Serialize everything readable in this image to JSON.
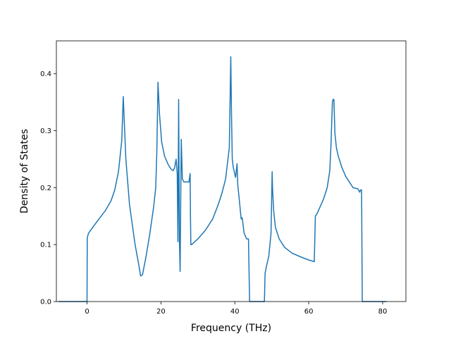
{
  "chart_data": {
    "type": "line",
    "title": "",
    "xlabel": "Frequency (THz)",
    "ylabel": "Density of States",
    "xlim": [
      -8.3,
      86.3
    ],
    "ylim": [
      0,
      0.4578
    ],
    "grid": false,
    "legend": "none",
    "xticks": [
      0,
      20,
      40,
      60,
      80
    ],
    "xtick_labels": [
      "0",
      "20",
      "40",
      "60",
      "80"
    ],
    "yticks": [
      0.0,
      0.1,
      0.2,
      0.3,
      0.4
    ],
    "ytick_labels": [
      "0.0",
      "0.1",
      "0.2",
      "0.3",
      "0.4"
    ],
    "series": [
      {
        "color": "#1f77b4",
        "x": [
          -7.6,
          -3,
          0,
          0.05,
          0.4,
          1.5,
          3,
          5,
          6.5,
          7.5,
          8.5,
          9.0,
          9.4,
          9.8,
          10.5,
          11.5,
          13,
          14,
          14.5,
          15,
          16,
          17,
          18,
          18.6,
          18.9,
          19.2,
          19.6,
          20.2,
          21,
          22,
          22.8,
          23.3,
          23.7,
          24.1,
          24.4,
          24.6,
          24.8,
          25.0,
          25.2,
          25.5,
          25.8,
          26.2,
          27,
          27.6,
          27.9,
          28.0,
          28.1,
          28.3,
          30,
          32,
          34,
          35.5,
          36.5,
          37.5,
          38.5,
          38.9,
          39.1,
          39.3,
          39.6,
          40.2,
          40.6,
          40.8,
          41.2,
          41.7,
          42.0,
          42.5,
          43.2,
          43.7,
          44.0,
          44.3,
          45.5,
          48.0,
          48.2,
          48.5,
          49.2,
          49.8,
          50.1,
          50.2,
          50.5,
          51,
          52,
          53.5,
          55.5,
          58,
          60,
          61.5,
          61.8,
          62.3,
          63,
          64,
          65,
          65.7,
          66.0,
          66.4,
          66.6,
          66.8,
          67.1,
          67.5,
          68,
          69,
          70,
          71,
          72,
          73.3,
          73.8,
          74.0,
          74.3,
          74.5,
          75,
          77,
          80,
          80.9
        ],
        "values": [
          0,
          0,
          0,
          0.112,
          0.12,
          0.13,
          0.143,
          0.16,
          0.177,
          0.196,
          0.228,
          0.258,
          0.283,
          0.36,
          0.25,
          0.17,
          0.1,
          0.065,
          0.045,
          0.047,
          0.08,
          0.12,
          0.165,
          0.2,
          0.265,
          0.385,
          0.33,
          0.28,
          0.255,
          0.24,
          0.232,
          0.23,
          0.235,
          0.25,
          0.225,
          0.105,
          0.355,
          0.11,
          0.053,
          0.285,
          0.215,
          0.21,
          0.21,
          0.21,
          0.225,
          0.15,
          0.1,
          0.1,
          0.11,
          0.125,
          0.145,
          0.17,
          0.19,
          0.215,
          0.27,
          0.43,
          0.33,
          0.25,
          0.235,
          0.218,
          0.242,
          0.205,
          0.18,
          0.145,
          0.147,
          0.12,
          0.11,
          0.11,
          0,
          0,
          0,
          0,
          0.05,
          0.06,
          0.08,
          0.12,
          0.228,
          0.2,
          0.16,
          0.13,
          0.11,
          0.095,
          0.085,
          0.078,
          0.073,
          0.07,
          0.15,
          0.155,
          0.165,
          0.18,
          0.2,
          0.23,
          0.272,
          0.35,
          0.355,
          0.355,
          0.295,
          0.27,
          0.255,
          0.235,
          0.22,
          0.21,
          0.2,
          0.198,
          0.192,
          0.196,
          0.196,
          0,
          0,
          0,
          0,
          0
        ]
      }
    ]
  }
}
